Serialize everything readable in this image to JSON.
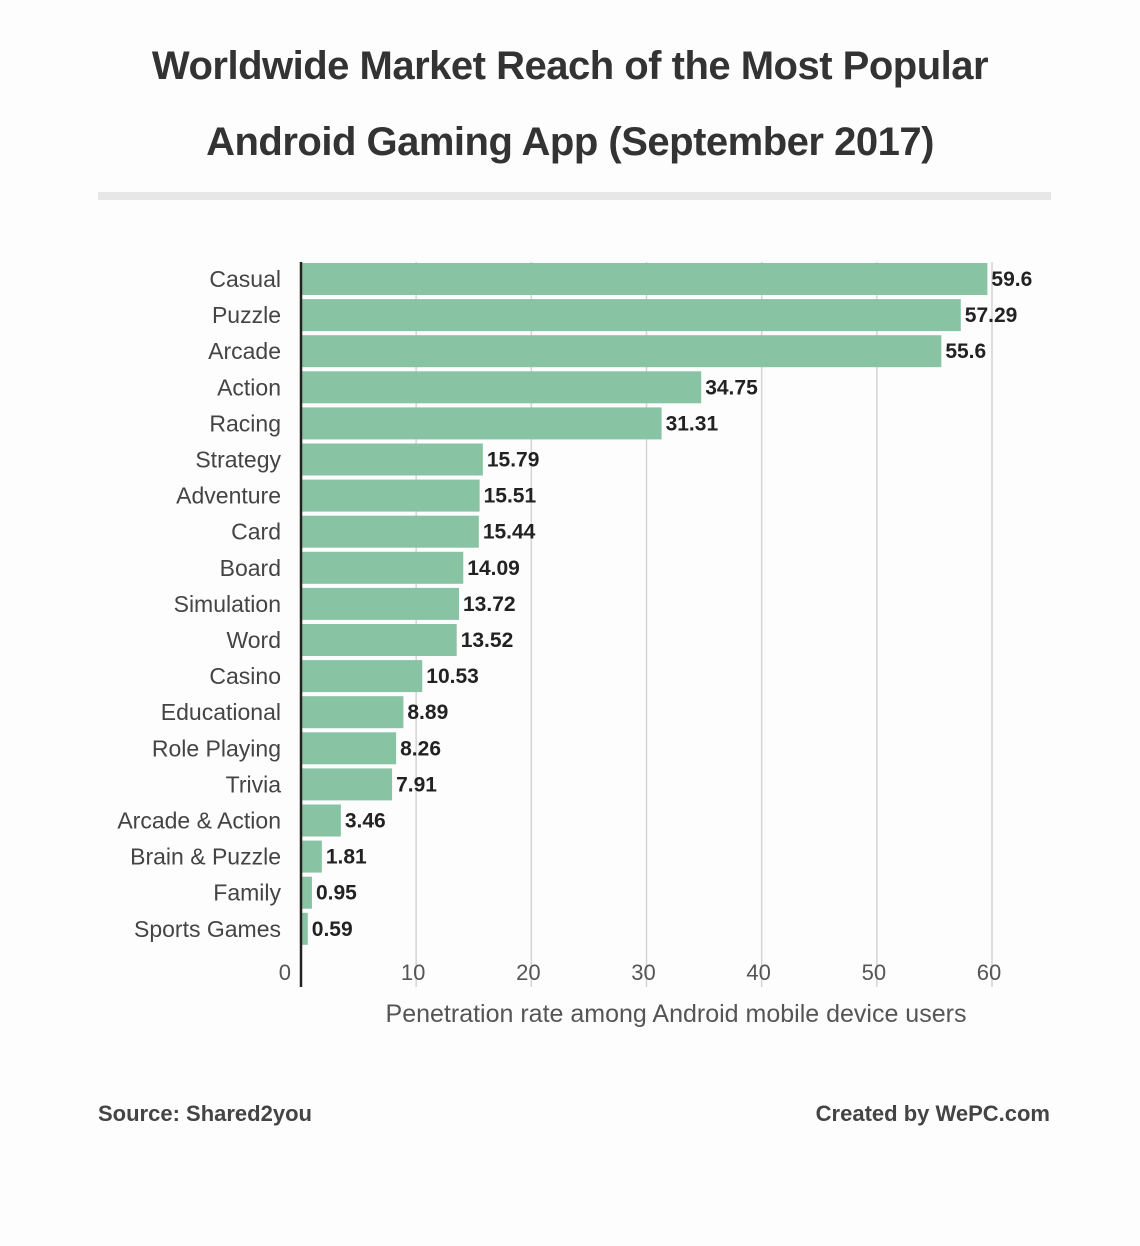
{
  "title_lines": [
    "Worldwide Market Reach of the Most Popular",
    "Android Gaming App (September 2017)"
  ],
  "chart_data": {
    "type": "bar",
    "orientation": "horizontal",
    "title": "Worldwide Market Reach of the Most Popular Android Gaming App (September 2017)",
    "xlabel": "Penetration rate among Android mobile device users",
    "ylabel": "",
    "xlim": [
      0,
      60
    ],
    "x_ticks": [
      "0",
      "10",
      "20",
      "30",
      "40",
      "50",
      "60"
    ],
    "grid": true,
    "categories": [
      "Casual",
      "Puzzle",
      "Arcade",
      "Action",
      "Racing",
      "Strategy",
      "Adventure",
      "Card",
      "Board",
      "Simulation",
      "Word",
      "Casino",
      "Educational",
      "Role Playing",
      "Trivia",
      "Arcade & Action",
      "Brain & Puzzle",
      "Family",
      "Sports Games"
    ],
    "values": [
      59.6,
      57.29,
      55.6,
      34.75,
      31.31,
      15.79,
      15.51,
      15.44,
      14.09,
      13.72,
      13.52,
      10.53,
      8.89,
      8.26,
      7.91,
      3.46,
      1.81,
      0.95,
      0.59
    ],
    "value_labels": [
      "59.6",
      "57.29",
      "55.6",
      "34.75",
      "31.31",
      "15.79",
      "15.51",
      "15.44",
      "14.09",
      "13.72",
      "13.52",
      "10.53",
      "8.89",
      "8.26",
      "7.91",
      "3.46",
      "1.81",
      "0.95",
      "0.59"
    ],
    "bar_color": "#88c4a3"
  },
  "footer": {
    "source": "Source: Shared2you",
    "credit": "Created by WePC.com"
  }
}
